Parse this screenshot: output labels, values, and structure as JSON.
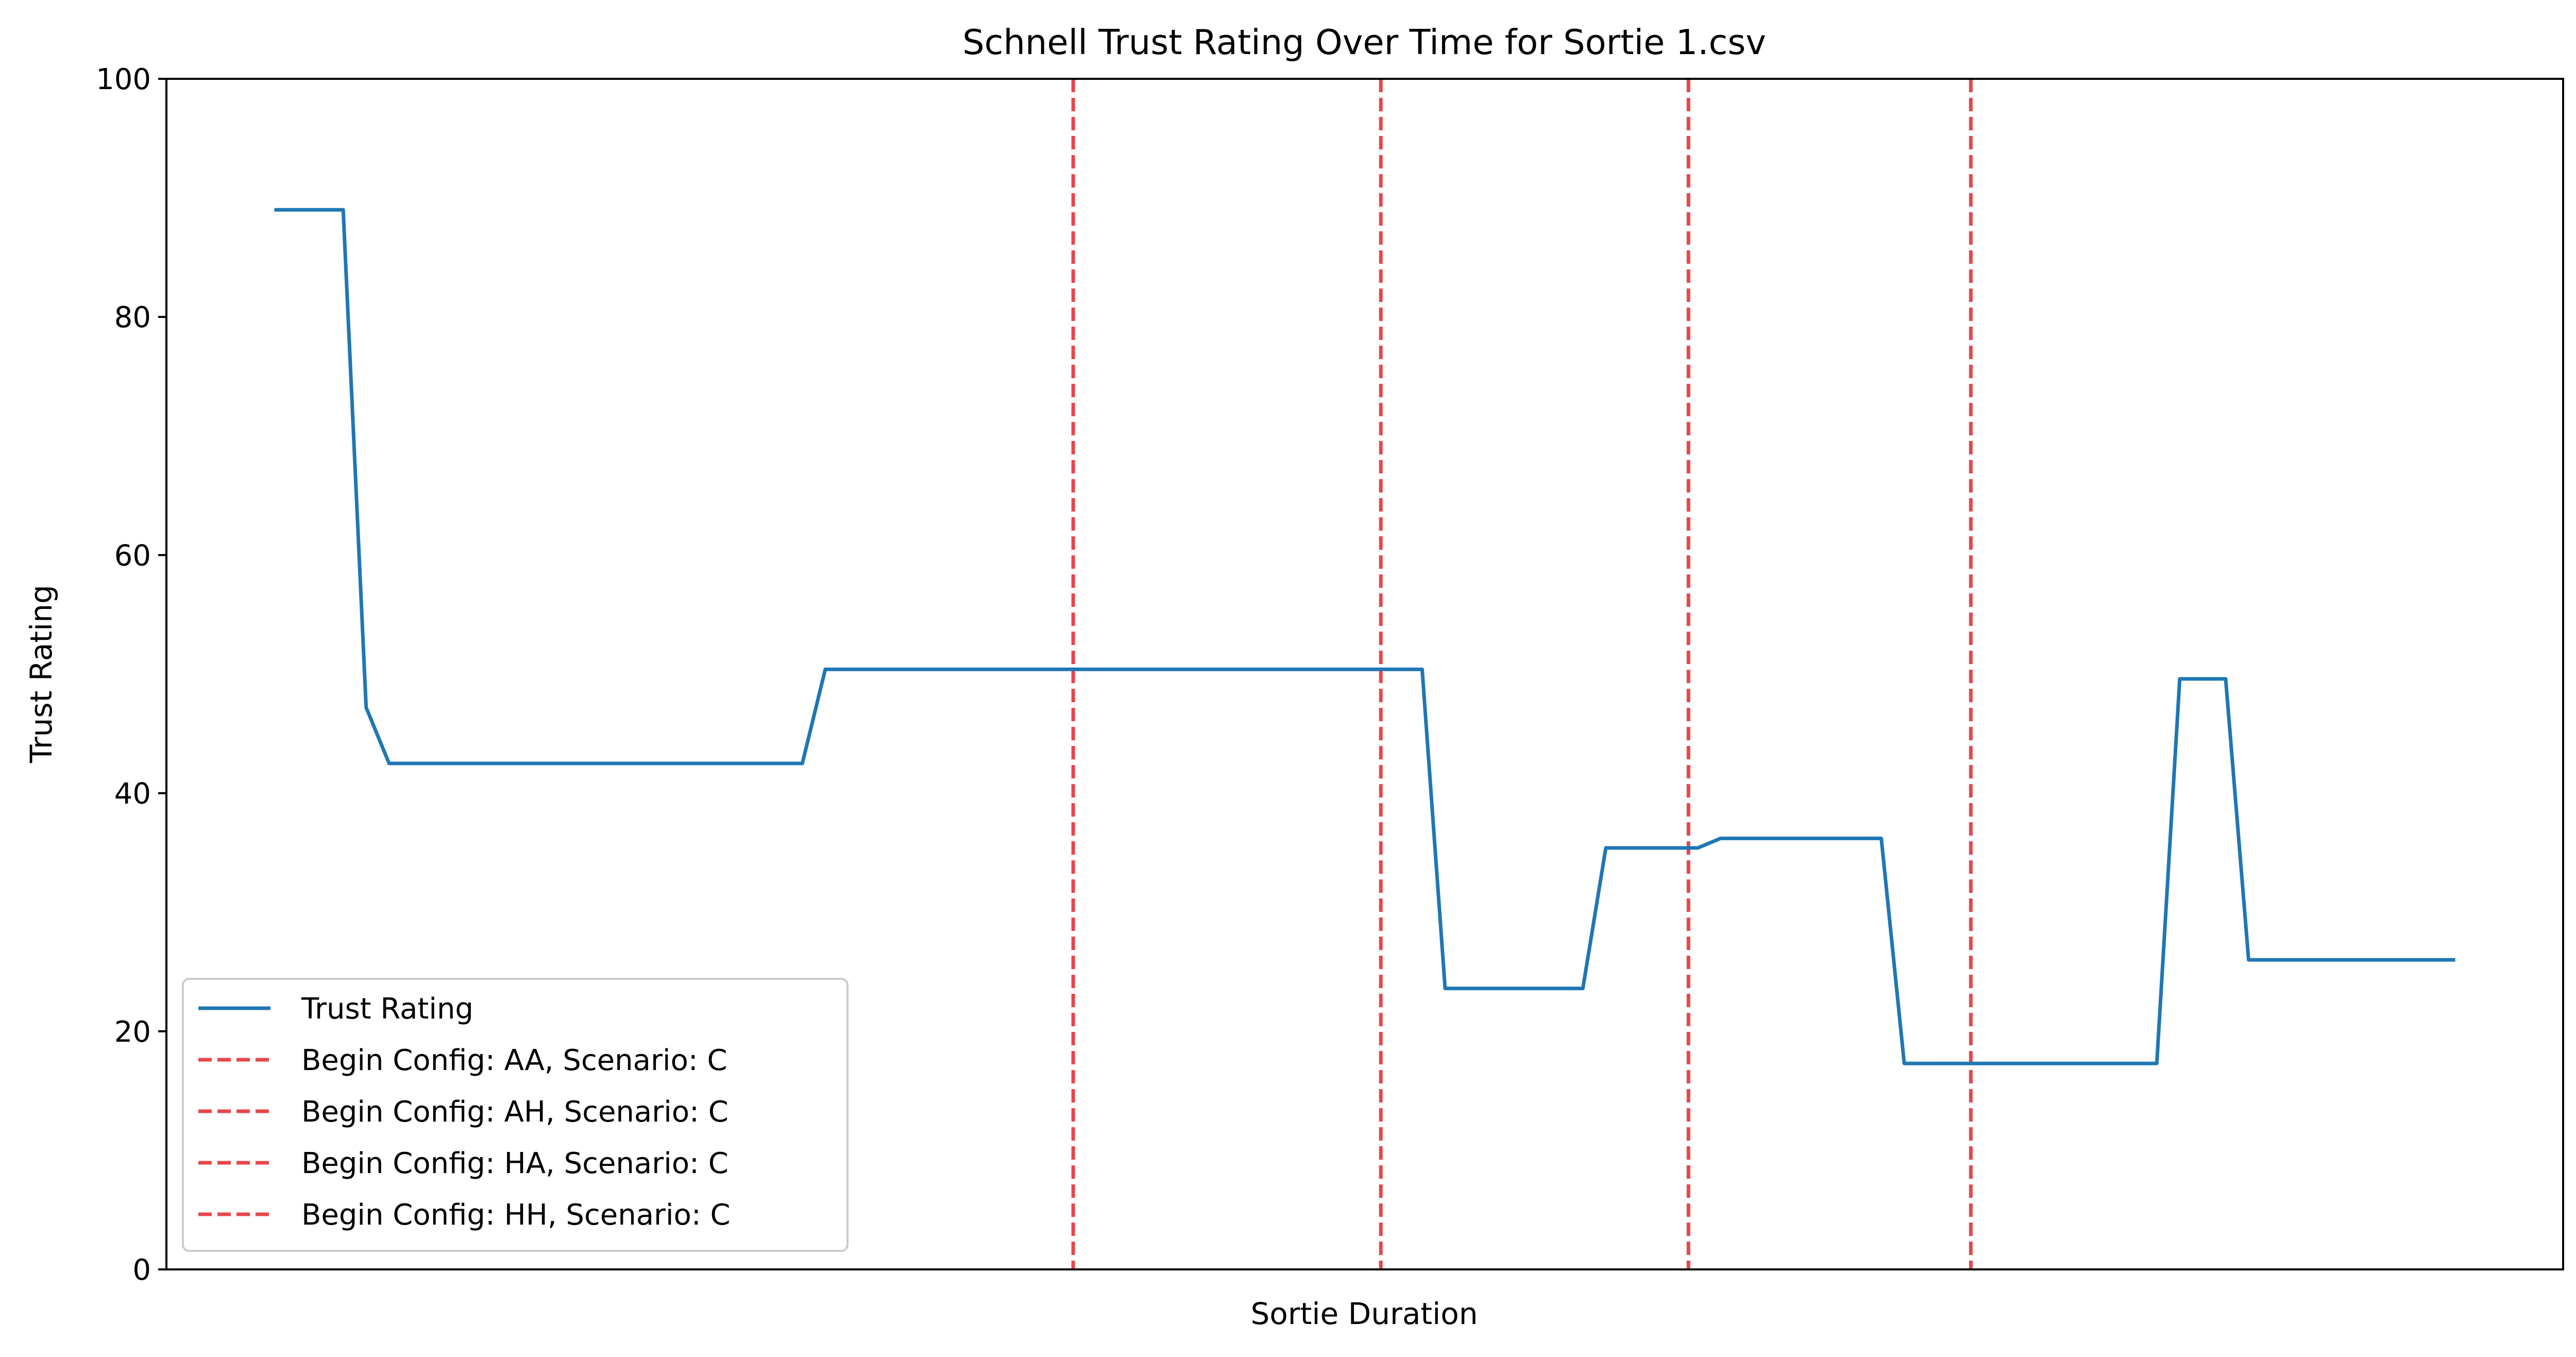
{
  "chart_data": {
    "type": "line",
    "title": "Schnell Trust Rating Over Time for Sortie 1.csv",
    "xlabel": "Sortie Duration",
    "ylabel": "Trust Rating",
    "xlim": [
      -4.7,
      99.7
    ],
    "ylim": [
      0,
      100
    ],
    "yticks": [
      0,
      20,
      40,
      60,
      80,
      100
    ],
    "x_ticks_shown": false,
    "grid": false,
    "legend_position": "lower-left",
    "series": [
      {
        "name": "Trust Rating",
        "color": "#1f77b4",
        "x": [
          0,
          3,
          4,
          5,
          23,
          24,
          50,
          51,
          57,
          58,
          62,
          63,
          70,
          71,
          82,
          83,
          85,
          86,
          95
        ],
        "y": [
          89,
          89,
          47.2,
          42.5,
          42.5,
          50.4,
          50.4,
          23.6,
          23.6,
          35.4,
          35.4,
          36.2,
          36.2,
          17.3,
          17.3,
          49.6,
          49.6,
          26,
          26
        ]
      }
    ],
    "vlines": [
      {
        "label": "Begin Config: AA, Scenario: C",
        "x": 34.8,
        "color": "#e8464a"
      },
      {
        "label": "Begin Config: AH, Scenario: C",
        "x": 48.2,
        "color": "#e8464a"
      },
      {
        "label": "Begin Config: HA, Scenario: C",
        "x": 61.6,
        "color": "#e8464a"
      },
      {
        "label": "Begin Config: HH, Scenario: C",
        "x": 73.9,
        "color": "#e8464a"
      }
    ]
  }
}
